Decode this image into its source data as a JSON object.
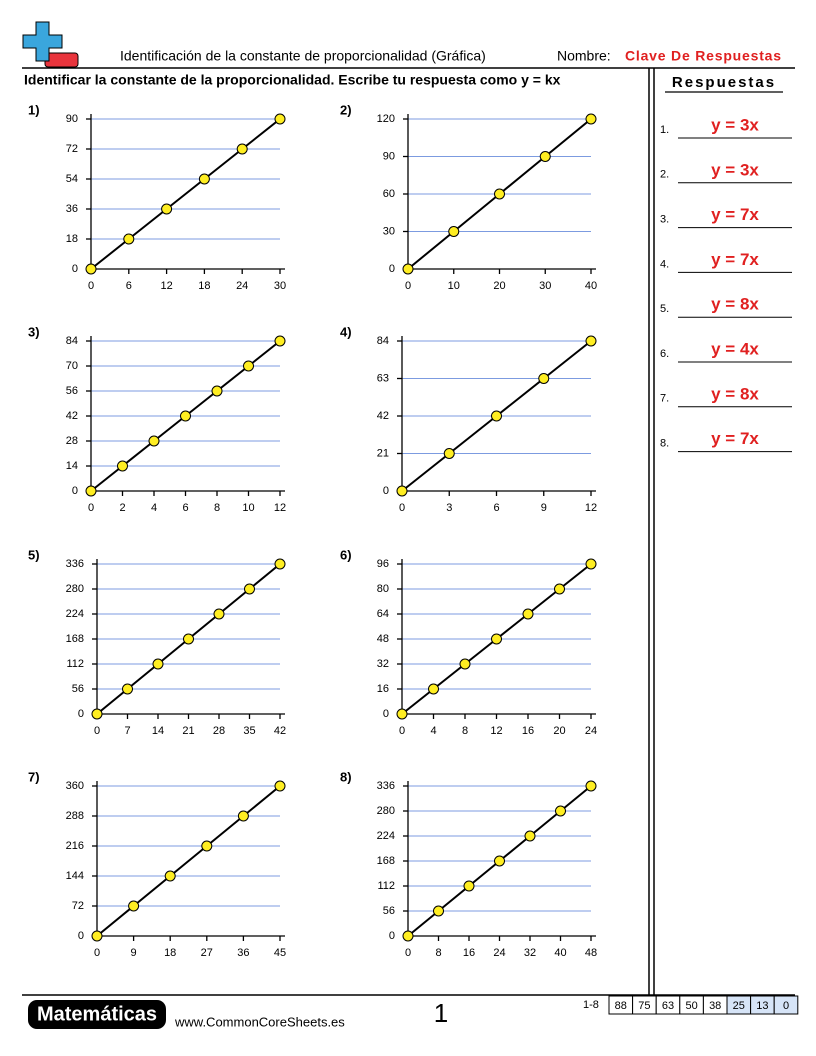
{
  "header": {
    "title": "Identificación de la constante de proporcionalidad (Gráfica)",
    "name_label": "Nombre:",
    "name_value": "Clave De Respuestas"
  },
  "instructions": "Identificar la constante de la proporcionalidad. Escribe tu respuesta como y = kx",
  "answers_title": "Respuestas",
  "answers": [
    {
      "number": "1.",
      "answer": "y = 3x"
    },
    {
      "number": "2.",
      "answer": "y = 3x"
    },
    {
      "number": "3.",
      "answer": "y = 7x"
    },
    {
      "number": "4.",
      "answer": "y = 7x"
    },
    {
      "number": "5.",
      "answer": "y = 8x"
    },
    {
      "number": "6.",
      "answer": "y = 4x"
    },
    {
      "number": "7.",
      "answer": "y = 8x"
    },
    {
      "number": "8.",
      "answer": "y = 7x"
    }
  ],
  "chart_data": [
    {
      "type": "line",
      "label": "1)",
      "x": [
        0,
        6,
        12,
        18,
        24,
        30
      ],
      "values": [
        0,
        18,
        36,
        54,
        72,
        90
      ],
      "xlim": [
        0,
        30
      ],
      "ylim": [
        0,
        90
      ],
      "xticks": [
        0,
        6,
        12,
        18,
        24,
        30
      ],
      "yticks": [
        0,
        18,
        36,
        54,
        72,
        90
      ],
      "grid": true,
      "color": "#000000"
    },
    {
      "type": "line",
      "label": "2)",
      "x": [
        0,
        10,
        20,
        30,
        40
      ],
      "values": [
        0,
        30,
        60,
        90,
        120
      ],
      "xlim": [
        0,
        40
      ],
      "ylim": [
        0,
        120
      ],
      "xticks": [
        0,
        10,
        20,
        30,
        40
      ],
      "yticks": [
        0,
        30,
        60,
        90,
        120
      ],
      "grid": true,
      "color": "#000000"
    },
    {
      "type": "line",
      "label": "3)",
      "x": [
        0,
        2,
        4,
        6,
        8,
        10,
        12
      ],
      "values": [
        0,
        14,
        28,
        42,
        56,
        70,
        84
      ],
      "xlim": [
        0,
        12
      ],
      "ylim": [
        0,
        84
      ],
      "xticks": [
        0,
        2,
        4,
        6,
        8,
        10,
        12
      ],
      "yticks": [
        0,
        14,
        28,
        42,
        56,
        70,
        84
      ],
      "grid": true,
      "color": "#000000"
    },
    {
      "type": "line",
      "label": "4)",
      "x": [
        0,
        3,
        6,
        9,
        12
      ],
      "values": [
        0,
        21,
        42,
        63,
        84
      ],
      "xlim": [
        0,
        12
      ],
      "ylim": [
        0,
        84
      ],
      "xticks": [
        0,
        3,
        6,
        9,
        12
      ],
      "yticks": [
        0,
        21,
        42,
        63,
        84
      ],
      "grid": true,
      "color": "#000000"
    },
    {
      "type": "line",
      "label": "5)",
      "x": [
        0,
        7,
        14,
        21,
        28,
        35,
        42
      ],
      "values": [
        0,
        56,
        112,
        168,
        224,
        280,
        336
      ],
      "xlim": [
        0,
        42
      ],
      "ylim": [
        0,
        336
      ],
      "xticks": [
        0,
        7,
        14,
        21,
        28,
        35,
        42
      ],
      "yticks": [
        0,
        56,
        112,
        168,
        224,
        280,
        336
      ],
      "grid": true,
      "color": "#000000"
    },
    {
      "type": "line",
      "label": "6)",
      "x": [
        0,
        4,
        8,
        12,
        16,
        20,
        24
      ],
      "values": [
        0,
        16,
        32,
        48,
        64,
        80,
        96
      ],
      "xlim": [
        0,
        24
      ],
      "ylim": [
        0,
        96
      ],
      "xticks": [
        0,
        4,
        8,
        12,
        16,
        20,
        24
      ],
      "yticks": [
        0,
        16,
        32,
        48,
        64,
        80,
        96
      ],
      "grid": true,
      "color": "#000000"
    },
    {
      "type": "line",
      "label": "7)",
      "x": [
        0,
        9,
        18,
        27,
        36,
        45
      ],
      "values": [
        0,
        72,
        144,
        216,
        288,
        360
      ],
      "xlim": [
        0,
        45
      ],
      "ylim": [
        0,
        360
      ],
      "xticks": [
        0,
        9,
        18,
        27,
        36,
        45
      ],
      "yticks": [
        0,
        72,
        144,
        216,
        288,
        360
      ],
      "grid": true,
      "color": "#000000"
    },
    {
      "type": "line",
      "label": "8)",
      "x": [
        0,
        8,
        16,
        24,
        32,
        40,
        48
      ],
      "values": [
        0,
        56,
        112,
        168,
        224,
        280,
        336
      ],
      "xlim": [
        0,
        48
      ],
      "ylim": [
        0,
        336
      ],
      "xticks": [
        0,
        8,
        16,
        24,
        32,
        40,
        48
      ],
      "yticks": [
        0,
        56,
        112,
        168,
        224,
        280,
        336
      ],
      "grid": true,
      "color": "#000000"
    }
  ],
  "footer": {
    "brand": "Matemáticas",
    "url": "www.CommonCoreSheets.es",
    "page": "1",
    "score_range": "1-8",
    "scores": [
      88,
      75,
      63,
      50,
      38,
      25,
      13,
      0
    ]
  }
}
